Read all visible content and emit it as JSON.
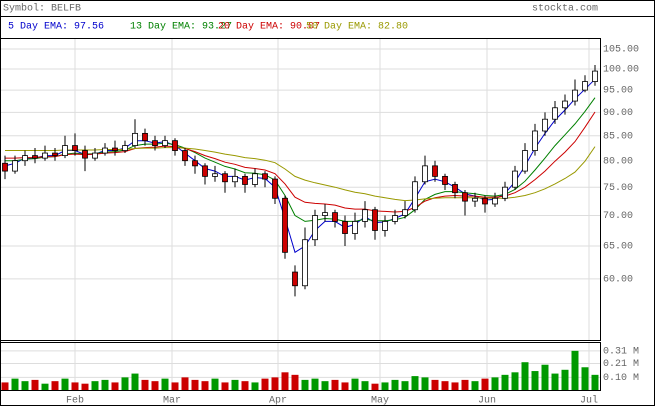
{
  "chart_data": {
    "type": "candlestick",
    "symbol": "Symbol: BELFB",
    "source": "stockta.com",
    "log_scale": true,
    "grid": true,
    "up_color": "#ffffff",
    "down_color": "#cc0000",
    "ylim": [
      51.7,
      107.85
    ],
    "yticks": [
      {
        "value": 60,
        "label": "60.00"
      },
      {
        "value": 65,
        "label": "65.00"
      },
      {
        "value": 70,
        "label": "70.00"
      },
      {
        "value": 75,
        "label": "75.00"
      },
      {
        "value": 80,
        "label": "80.00"
      },
      {
        "value": 85,
        "label": "85.00"
      },
      {
        "value": 90,
        "label": "90.00"
      },
      {
        "value": 95,
        "label": "95.00"
      },
      {
        "value": 100,
        "label": "100.00"
      },
      {
        "value": 105,
        "label": "105.00"
      }
    ],
    "xlim": [
      -0.5,
      59.5
    ],
    "xticks": [
      {
        "value": 7,
        "label": "Feb"
      },
      {
        "value": 16.7,
        "label": "Mar"
      },
      {
        "value": 27.3,
        "label": "Apr"
      },
      {
        "value": 37.5,
        "label": "May"
      },
      {
        "value": 48.2,
        "label": "Jun"
      },
      {
        "value": 58.4,
        "label": "Jul"
      }
    ],
    "open": [
      79.5,
      78,
      80,
      81,
      80.5,
      81.5,
      81,
      83,
      82,
      80.5,
      81.5,
      82.5,
      82,
      83,
      85.5,
      84,
      83,
      84,
      82,
      80,
      79,
      77,
      77.5,
      76,
      77,
      75.5,
      77.5,
      76.5,
      73,
      61,
      59,
      66,
      70,
      70.5,
      69,
      67,
      69,
      71,
      67.5,
      69,
      70,
      71,
      76,
      79,
      77,
      75.5,
      74,
      72.5,
      73,
      72,
      73,
      75,
      78,
      82,
      86,
      88.5,
      91,
      92.5,
      95,
      97
    ],
    "high": [
      81,
      81,
      82,
      82.5,
      83,
      82.5,
      85,
      85.5,
      83,
      82.5,
      83.5,
      84,
      84,
      88.5,
      86.5,
      85,
      85,
      84.5,
      82.5,
      81,
      79.5,
      79,
      78,
      78.5,
      77.5,
      78.5,
      78,
      77,
      73.5,
      62,
      68,
      71,
      72,
      71,
      70,
      70.5,
      72.5,
      71.5,
      70,
      71,
      72.5,
      77,
      81,
      80,
      77.5,
      76,
      74.5,
      74,
      73.5,
      74,
      76,
      79,
      83.5,
      87.5,
      90,
      92.5,
      94,
      97.5,
      98.5,
      101
    ],
    "low": [
      76.5,
      77.5,
      79,
      79.5,
      80,
      80,
      80.5,
      81,
      78,
      80,
      81,
      81,
      81.5,
      82.5,
      83,
      82,
      82.5,
      81,
      79,
      77.5,
      75.5,
      76,
      74,
      75,
      74,
      75,
      75,
      72,
      63,
      57.5,
      58.5,
      65,
      69,
      68,
      65,
      66,
      68,
      66,
      66.5,
      68.5,
      69.5,
      70.5,
      75.5,
      76,
      74.5,
      73,
      70,
      71.5,
      70.5,
      71.5,
      72.5,
      74.5,
      77.5,
      81,
      85,
      87.5,
      89.5,
      91.5,
      94.5,
      96
    ],
    "close": [
      78,
      80,
      81,
      80.5,
      81.5,
      81,
      83,
      82,
      80.5,
      81.5,
      82.5,
      82,
      83,
      85.5,
      84,
      83,
      84,
      82,
      80,
      79,
      77,
      77.5,
      76,
      77,
      75.5,
      77.5,
      76.5,
      73,
      64,
      59,
      66,
      70,
      70.5,
      69,
      67,
      69,
      71,
      67.5,
      69,
      70,
      71,
      76,
      79,
      77,
      75.5,
      74,
      72.5,
      73,
      72,
      73,
      75,
      78,
      82,
      86,
      88.5,
      91,
      92.5,
      95,
      97,
      99.5
    ],
    "series": [
      {
        "name": "5 Day EMA: 97.56",
        "color": "#0000cc",
        "values": [
          79,
          79.5,
          80.5,
          80.5,
          81,
          81,
          82,
          82,
          81.2,
          81.3,
          82,
          82,
          82.5,
          84,
          84,
          83.5,
          83.8,
          83,
          81.5,
          80,
          78.5,
          78,
          77,
          77,
          76.3,
          76.8,
          76.6,
          75,
          69.5,
          64,
          65,
          67.5,
          69,
          69,
          68,
          68.5,
          69.8,
          68.8,
          68.9,
          69.5,
          70.3,
          73,
          76,
          76.5,
          76,
          75,
          73.8,
          73.4,
          72.7,
          72.8,
          73.9,
          76,
          79,
          82.5,
          85.5,
          88.3,
          90.5,
          93,
          95.2,
          97.56
        ]
      },
      {
        "name": "13 Day EMA: 93.27",
        "color": "#008000",
        "values": [
          80,
          80,
          80.3,
          80.4,
          80.7,
          80.8,
          81.3,
          81.5,
          81.3,
          81.4,
          81.7,
          81.8,
          82.1,
          83,
          83.3,
          83.3,
          83.5,
          83.2,
          82.5,
          81.6,
          80.5,
          79.7,
          78.9,
          78.4,
          77.7,
          77.6,
          77.3,
          76.3,
          73.5,
          70,
          69,
          69.2,
          69.5,
          69.4,
          69,
          69,
          69.4,
          69.1,
          69.1,
          69.3,
          69.7,
          71,
          72.8,
          73.7,
          74.2,
          74.2,
          74,
          73.8,
          73.5,
          73.4,
          73.7,
          74.6,
          76.1,
          78.2,
          80.5,
          83,
          85.2,
          87.5,
          90.2,
          93.27
        ]
      },
      {
        "name": "20 Day EMA: 90.07",
        "color": "#cc0000",
        "values": [
          80.5,
          80.5,
          80.6,
          80.6,
          80.8,
          80.8,
          81.2,
          81.3,
          81.2,
          81.3,
          81.5,
          81.6,
          81.8,
          82.4,
          82.6,
          82.7,
          82.9,
          82.8,
          82.4,
          81.8,
          81,
          80.4,
          79.7,
          79.3,
          78.7,
          78.5,
          78.2,
          77.5,
          75.6,
          73.2,
          72.3,
          72.1,
          72,
          71.8,
          71.3,
          71.1,
          71.1,
          70.8,
          70.7,
          70.6,
          70.7,
          71.4,
          72.5,
          73.1,
          73.4,
          73.5,
          73.4,
          73.4,
          73.2,
          73.2,
          73.4,
          74,
          75,
          76.4,
          78,
          79.9,
          81.7,
          83.8,
          86.8,
          90.07
        ]
      },
      {
        "name": "50 Day EMA: 82.80",
        "color": "#999900",
        "values": [
          82,
          82,
          82,
          82,
          82,
          82,
          82.1,
          82.1,
          82.1,
          82.1,
          82.2,
          82.2,
          82.2,
          82.4,
          82.5,
          82.5,
          82.6,
          82.6,
          82.5,
          82.3,
          82,
          81.7,
          81.3,
          81,
          80.6,
          80.4,
          80.1,
          79.6,
          78.4,
          77,
          76.3,
          75.8,
          75.4,
          75,
          74.5,
          74.1,
          73.8,
          73.4,
          73.1,
          72.8,
          72.6,
          72.7,
          72.9,
          73,
          73.1,
          73.1,
          73.1,
          73.1,
          73,
          73,
          73,
          73.2,
          73.5,
          74,
          74.7,
          75.6,
          76.6,
          77.8,
          79.9,
          82.8
        ]
      }
    ],
    "volume": {
      "up_color": "#009900",
      "down_color": "#cc0000",
      "ylim": [
        0,
        0.38
      ],
      "yticks": [
        {
          "value": 0.1,
          "label": "0.10 M"
        },
        {
          "value": 0.21,
          "label": "0.21 M"
        },
        {
          "value": 0.31,
          "label": "0.31 M"
        }
      ],
      "values": [
        0.06,
        0.09,
        0.07,
        0.08,
        0.05,
        0.07,
        0.09,
        0.06,
        0.05,
        0.07,
        0.08,
        0.06,
        0.1,
        0.13,
        0.08,
        0.07,
        0.09,
        0.06,
        0.1,
        0.08,
        0.07,
        0.09,
        0.06,
        0.08,
        0.07,
        0.06,
        0.09,
        0.1,
        0.14,
        0.12,
        0.08,
        0.09,
        0.07,
        0.08,
        0.06,
        0.09,
        0.07,
        0.05,
        0.06,
        0.08,
        0.07,
        0.11,
        0.1,
        0.08,
        0.07,
        0.06,
        0.08,
        0.07,
        0.09,
        0.1,
        0.12,
        0.14,
        0.22,
        0.15,
        0.2,
        0.13,
        0.16,
        0.31,
        0.18,
        0.12
      ]
    }
  }
}
